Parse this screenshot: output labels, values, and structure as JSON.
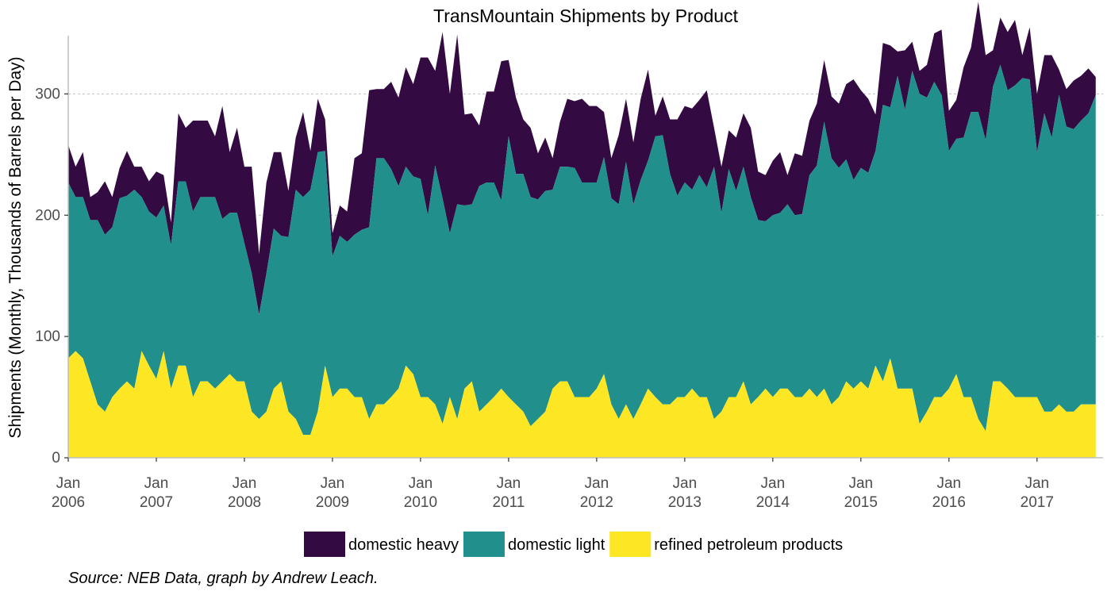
{
  "chart_data": {
    "type": "area",
    "stacked": true,
    "title": "TransMountain Shipments by Product",
    "xlabel": "",
    "ylabel": "Shipments (Monthly, Thousands of Barrels per Day)",
    "ylim": [
      0,
      348
    ],
    "xlim": [
      "2006-01",
      "2017-10"
    ],
    "yticks": [
      0,
      100,
      200,
      300
    ],
    "xticks": [
      {
        "date": "2006-01",
        "line1": "Jan",
        "line2": "2006"
      },
      {
        "date": "2007-01",
        "line1": "Jan",
        "line2": "2007"
      },
      {
        "date": "2008-01",
        "line1": "Jan",
        "line2": "2008"
      },
      {
        "date": "2009-01",
        "line1": "Jan",
        "line2": "2009"
      },
      {
        "date": "2010-01",
        "line1": "Jan",
        "line2": "2010"
      },
      {
        "date": "2011-01",
        "line1": "Jan",
        "line2": "2011"
      },
      {
        "date": "2012-01",
        "line1": "Jan",
        "line2": "2012"
      },
      {
        "date": "2013-01",
        "line1": "Jan",
        "line2": "2013"
      },
      {
        "date": "2014-01",
        "line1": "Jan",
        "line2": "2014"
      },
      {
        "date": "2015-01",
        "line1": "Jan",
        "line2": "2015"
      },
      {
        "date": "2016-01",
        "line1": "Jan",
        "line2": "2016"
      },
      {
        "date": "2017-01",
        "line1": "Jan",
        "line2": "2017"
      }
    ],
    "grid": "horizontal dashed at major y ticks",
    "legend_position": "bottom",
    "caption": "Source: NEB Data, graph by Andrew Leach.",
    "x_start": "2006-01",
    "x_step": "month",
    "series": [
      {
        "name": "refined petroleum products",
        "color": "#FDE725",
        "values": [
          82,
          88,
          82,
          63,
          44,
          38,
          50,
          57,
          63,
          57,
          88,
          76,
          65,
          88,
          57,
          76,
          76,
          50,
          63,
          63,
          57,
          63,
          69,
          63,
          63,
          38,
          32,
          38,
          57,
          63,
          38,
          32,
          19,
          19,
          38,
          76,
          50,
          57,
          57,
          50,
          50,
          32,
          44,
          44,
          50,
          57,
          76,
          69,
          50,
          50,
          44,
          28,
          50,
          32,
          57,
          63,
          38,
          44,
          50,
          57,
          50,
          44,
          38,
          26,
          32,
          38,
          57,
          63,
          63,
          50,
          50,
          50,
          57,
          69,
          44,
          32,
          44,
          32,
          44,
          57,
          50,
          44,
          44,
          50,
          50,
          57,
          50,
          50,
          32,
          38,
          50,
          50,
          63,
          44,
          50,
          57,
          50,
          57,
          57,
          50,
          50,
          57,
          50,
          57,
          44,
          50,
          63,
          57,
          63,
          57,
          76,
          63,
          82,
          57,
          57,
          57,
          28,
          38,
          50,
          50,
          57,
          69,
          50,
          50,
          32,
          22,
          63,
          63,
          57,
          50,
          50,
          50,
          50,
          38,
          38,
          44,
          38,
          38,
          44,
          44,
          44
        ]
      },
      {
        "name": "domestic light",
        "color": "#21908D",
        "values": [
          145,
          127,
          133,
          133,
          152,
          146,
          140,
          157,
          153,
          164,
          127,
          127,
          133,
          120,
          118,
          152,
          152,
          153,
          152,
          152,
          158,
          134,
          133,
          139,
          114,
          114,
          86,
          114,
          132,
          120,
          144,
          189,
          196,
          202,
          214,
          177,
          116,
          126,
          121,
          134,
          138,
          158,
          203,
          203,
          188,
          167,
          164,
          163,
          180,
          150,
          197,
          186,
          135,
          177,
          151,
          146,
          186,
          183,
          177,
          155,
          215,
          190,
          196,
          189,
          181,
          182,
          164,
          177,
          177,
          189,
          177,
          177,
          170,
          179,
          170,
          177,
          200,
          177,
          185,
          188,
          215,
          222,
          190,
          166,
          177,
          164,
          183,
          173,
          208,
          164,
          188,
          170,
          177,
          171,
          146,
          138,
          150,
          145,
          152,
          150,
          151,
          176,
          191,
          220,
          203,
          189,
          183,
          172,
          176,
          178,
          177,
          228,
          207,
          258,
          230,
          262,
          272,
          259,
          260,
          249,
          196,
          194,
          214,
          235,
          253,
          240,
          243,
          261,
          246,
          257,
          263,
          262,
          202,
          246,
          226,
          255,
          235,
          233,
          234,
          240,
          255
        ]
      },
      {
        "name": "domestic heavy",
        "color": "#330A42",
        "values": [
          31,
          25,
          37,
          19,
          23,
          44,
          25,
          25,
          37,
          19,
          25,
          25,
          38,
          25,
          19,
          56,
          44,
          75,
          63,
          63,
          50,
          93,
          50,
          70,
          63,
          88,
          50,
          75,
          63,
          69,
          38,
          43,
          70,
          32,
          44,
          26,
          19,
          25,
          25,
          63,
          63,
          113,
          57,
          57,
          72,
          73,
          82,
          76,
          100,
          130,
          78,
          137,
          115,
          140,
          75,
          75,
          50,
          75,
          75,
          115,
          63,
          63,
          45,
          57,
          38,
          44,
          26,
          37,
          56,
          55,
          69,
          63,
          63,
          37,
          33,
          57,
          52,
          51,
          67,
          75,
          17,
          32,
          45,
          63,
          63,
          67,
          62,
          80,
          32,
          38,
          32,
          44,
          44,
          57,
          40,
          38,
          45,
          50,
          24,
          51,
          48,
          45,
          51,
          51,
          51,
          53,
          62,
          83,
          64,
          61,
          30,
          51,
          51,
          20,
          49,
          24,
          19,
          27,
          40,
          54,
          33,
          32,
          58,
          53,
          91,
          70,
          30,
          39,
          48,
          54,
          19,
          43,
          48,
          48,
          68,
          21,
          31,
          40,
          37,
          37,
          15
        ]
      }
    ]
  }
}
